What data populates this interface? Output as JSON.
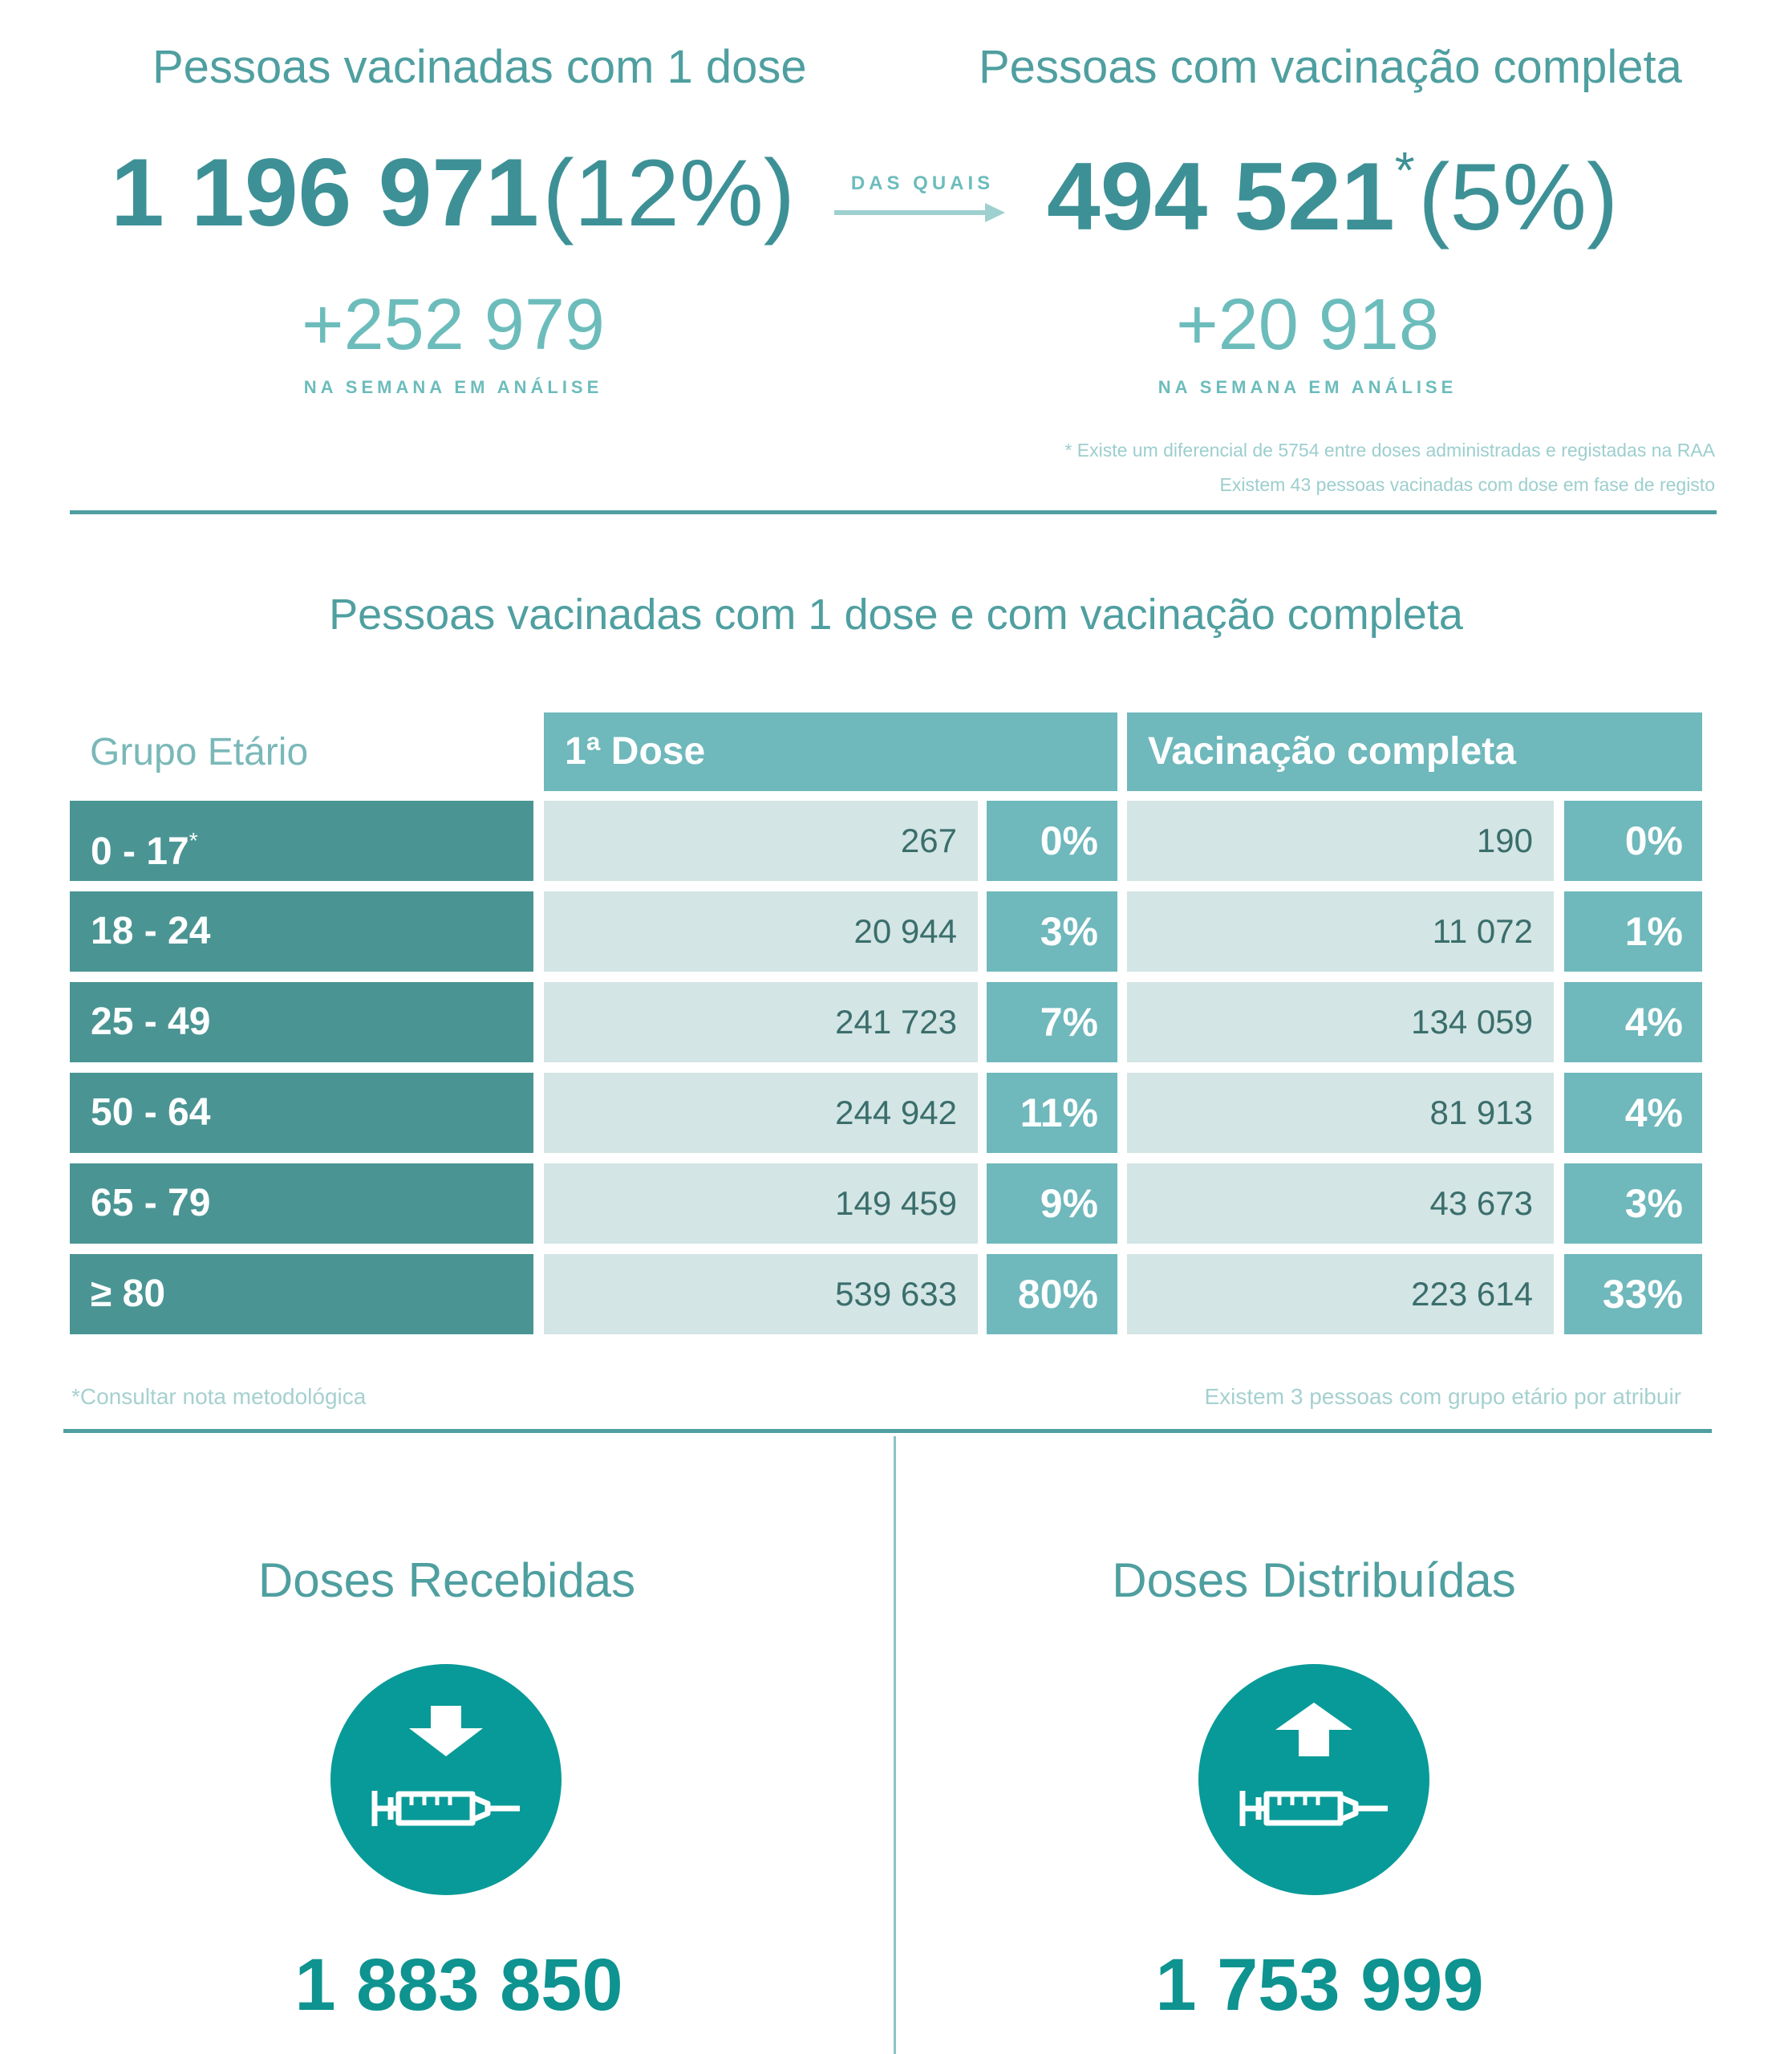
{
  "first_dose": {
    "title": "Pessoas vacinadas com 1 dose",
    "value": "1 196 971",
    "percent": "(12%)",
    "delta": "+252 979",
    "delta_label": "NA SEMANA EM ANÁLISE"
  },
  "arrow_label": "DAS QUAIS",
  "complete": {
    "title": "Pessoas com vacinação completa",
    "value": "494 521",
    "asterisk": "*",
    "percent": "(5%)",
    "delta": "+20 918",
    "delta_label": "NA SEMANA EM ANÁLISE"
  },
  "footnotes": {
    "line1": "* Existe um diferencial de 5754 entre doses administradas e registadas na RAA",
    "line2": "Existem 43 pessoas vacinadas com dose em fase de registo"
  },
  "table": {
    "title": "Pessoas vacinadas com 1 dose e com vacinação completa",
    "headers": {
      "age": "Grupo Etário",
      "first": "1ª Dose",
      "complete": "Vacinação completa"
    },
    "rows": [
      {
        "age": "0 - 17",
        "age_mark": "*",
        "first": "267",
        "first_pct": "0%",
        "complete": "190",
        "complete_pct": "0%"
      },
      {
        "age": "18 - 24",
        "age_mark": "",
        "first": "20 944",
        "first_pct": "3%",
        "complete": "11 072",
        "complete_pct": "1%"
      },
      {
        "age": "25 - 49",
        "age_mark": "",
        "first": "241 723",
        "first_pct": "7%",
        "complete": "134 059",
        "complete_pct": "4%"
      },
      {
        "age": "50 - 64",
        "age_mark": "",
        "first": "244 942",
        "first_pct": "11%",
        "complete": "81 913",
        "complete_pct": "4%"
      },
      {
        "age": "65 - 79",
        "age_mark": "",
        "first": "149 459",
        "first_pct": "9%",
        "complete": "43 673",
        "complete_pct": "3%"
      },
      {
        "age": "≥ 80",
        "age_mark": "",
        "first": "539 633",
        "first_pct": "80%",
        "complete": "223 614",
        "complete_pct": "33%"
      }
    ],
    "note_left": "*Consultar nota metodológica",
    "note_right": "Existem 3 pessoas com grupo etário por atribuir"
  },
  "doses_received": {
    "title": "Doses Recebidas",
    "value": "1 883 850",
    "icon": "syringe-down-arrow-icon"
  },
  "doses_distributed": {
    "title": "Doses Distribuídas",
    "value": "1 753 999",
    "icon": "syringe-up-arrow-icon"
  },
  "colors": {
    "teal_dark": "#4a9593",
    "teal_mid": "#6fb8bc",
    "teal_light": "#d3e5e4",
    "teal_icon": "#089a98"
  }
}
